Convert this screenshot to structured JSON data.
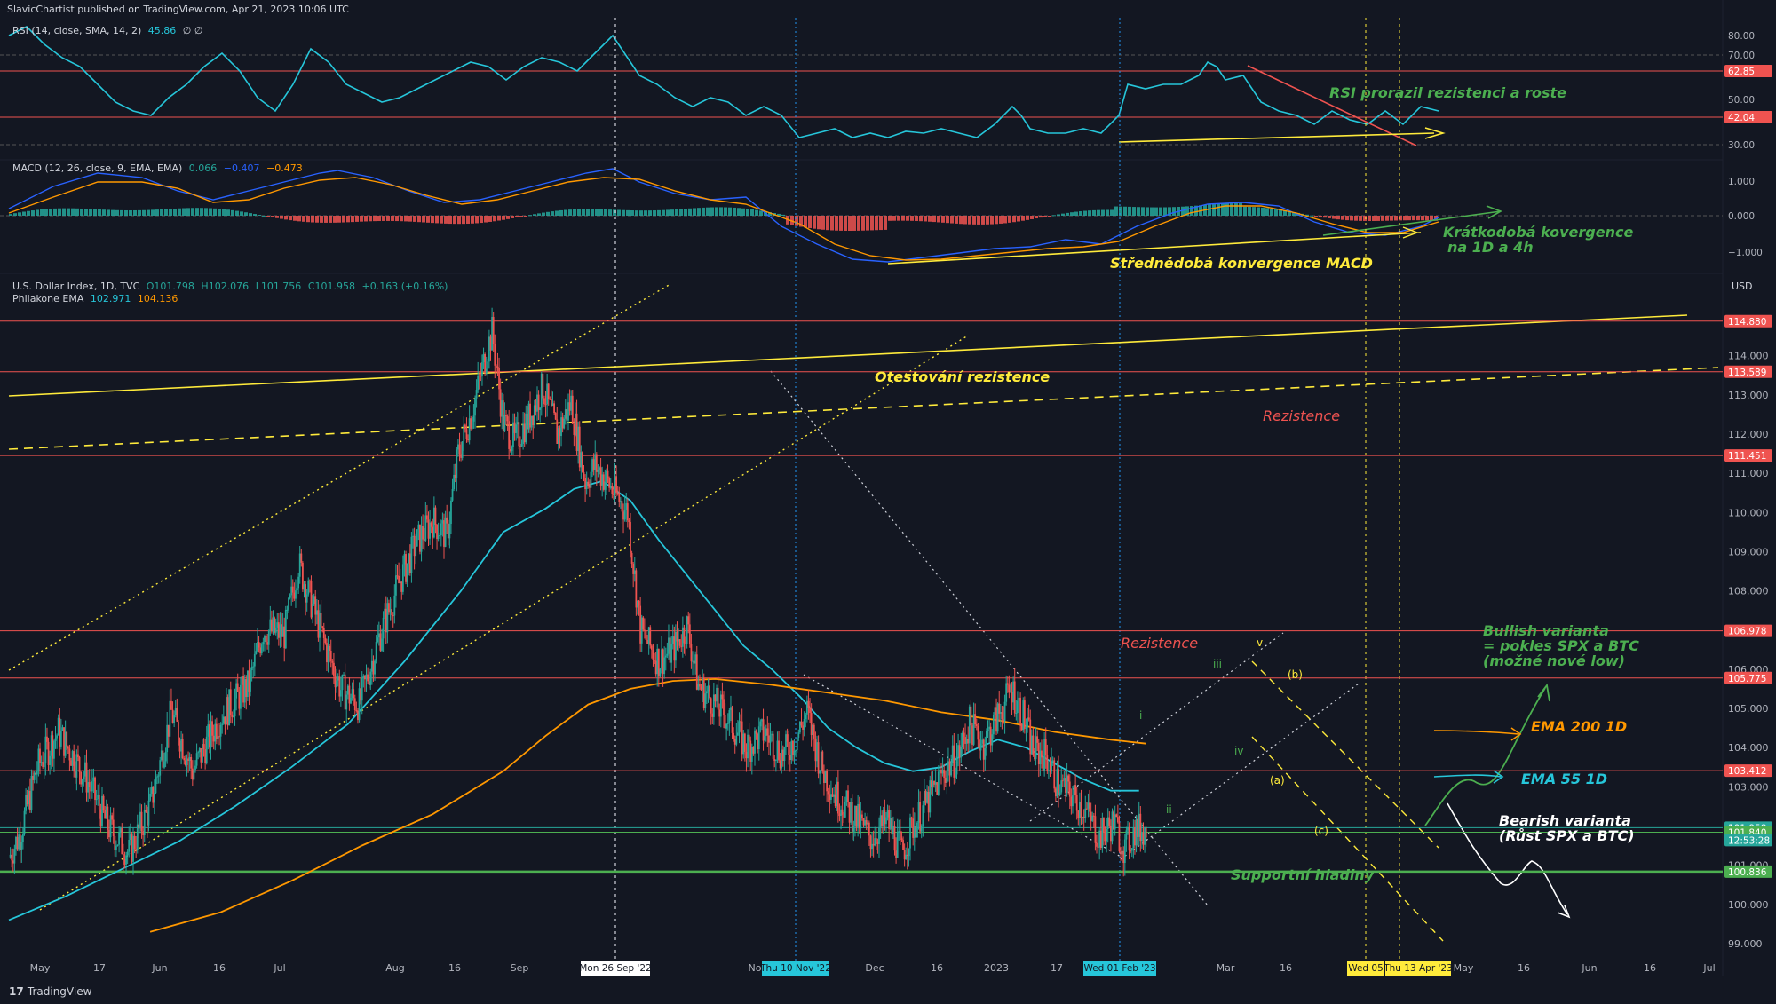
{
  "header": {
    "published": "SlavicChartist published on TradingView.com, Apr 21, 2023 10:06 UTC",
    "rsi_name": "RSI (14, close, SMA, 14, 2)",
    "rsi_value": "45.86",
    "rsi_extra": "∅ ∅",
    "macd_name": "MACD (12, 26, close, 9, EMA, EMA)",
    "macd_v1": "0.066",
    "macd_v2": "−0.407",
    "macd_v3": "−0.473",
    "main_name": "U.S. Dollar Index, 1D, TVC",
    "ohlc_o": "O101.798",
    "ohlc_h": "H102.076",
    "ohlc_l": "L101.756",
    "ohlc_c": "C101.958",
    "ohlc_chg": "+0.163 (+0.16%)",
    "ema_name": "Philakone EMA",
    "ema_v1": "102.971",
    "ema_v2": "104.136",
    "currency": "USD"
  },
  "footer": {
    "brand": "TradingView"
  },
  "colors": {
    "bg": "#131722",
    "up": "#26a69a",
    "down": "#ef5350",
    "ema55": "#26c6da",
    "ema200": "#ff9800",
    "rsi": "#26c6da",
    "red_line": "#ef5350",
    "green_line": "#4caf50",
    "yellow": "#ffeb3b"
  },
  "rsi_axis": [
    "80.00",
    "70.00",
    "62.85",
    "50.00",
    "42.04",
    "30.00"
  ],
  "macd_axis": [
    "1.000",
    "0.000",
    "−1.000"
  ],
  "annotations": {
    "rsi": "RSI prorazil rezistenci a roste",
    "macd_short": "Krátkodobá kovergence",
    "macd_short2": "na 1D a 4h",
    "macd_mid": "Střednědobá konvergence MACD",
    "retest": "Otestování rezistence",
    "res1": "Rezistence",
    "res2": "Rezistence",
    "bull1": "Bullish varianta",
    "bull2": "= pokles SPX a BTC",
    "bull3": "(možné nové low)",
    "ema200": "EMA 200 1D",
    "ema55": "EMA 55 1D",
    "bear1": "Bearish varianta",
    "bear2": "(Růst SPX a BTC)",
    "support": "Supportní hladiny",
    "waves": [
      "iii",
      "v",
      "(b)",
      "i",
      "iv",
      "ii",
      "(a)",
      "(c)"
    ]
  },
  "chart_data": {
    "type": "candlestick",
    "symbol": "U.S. Dollar Index",
    "ylim": [
      98.5,
      115.6
    ],
    "y_ticks": [
      114,
      113,
      112,
      111,
      110,
      109,
      108,
      107,
      106,
      105,
      104,
      103,
      102,
      101,
      100,
      99
    ],
    "price_labels": [
      {
        "value": 114.88,
        "text": "114.880",
        "color": "#ef5350"
      },
      {
        "value": 113.589,
        "text": "113.589",
        "color": "#ef5350"
      },
      {
        "value": 111.451,
        "text": "111.451",
        "color": "#ef5350"
      },
      {
        "value": 106.978,
        "text": "106.978",
        "color": "#ef5350"
      },
      {
        "value": 105.775,
        "text": "105.775",
        "color": "#ef5350"
      },
      {
        "value": 103.412,
        "text": "103.412",
        "color": "#ef5350"
      },
      {
        "value": 101.958,
        "text": "101.958",
        "color": "#26a69a"
      },
      {
        "value": 101.84,
        "text": "101.840",
        "color": "#4caf50"
      },
      {
        "value": 100.836,
        "text": "100.836",
        "color": "#4caf50"
      }
    ],
    "countdown": "12:53:28",
    "x_ticks": [
      "May",
      "17",
      "Jun",
      "16",
      "Jul",
      "Aug",
      "16",
      "Sep",
      "No",
      "Dec",
      "16",
      "2023",
      "17",
      "Mar",
      "16",
      "May",
      "16",
      "Jun",
      "16",
      "Jul"
    ],
    "x_highlights": [
      "Mon 26 Sep '22",
      "Thu 10 Nov '22",
      "Wed 01 Feb '23",
      "Wed 05",
      "Thu 13 Apr '23"
    ],
    "price_path": [
      [
        0,
        101.2
      ],
      [
        8,
        101.8
      ],
      [
        20,
        103.5
      ],
      [
        35,
        104.4
      ],
      [
        55,
        103.2
      ],
      [
        70,
        102.0
      ],
      [
        85,
        101.3
      ],
      [
        100,
        102.5
      ],
      [
        115,
        104.9
      ],
      [
        130,
        103.4
      ],
      [
        150,
        104.8
      ],
      [
        170,
        105.6
      ],
      [
        180,
        107.0
      ],
      [
        195,
        106.9
      ],
      [
        205,
        108.7
      ],
      [
        215,
        107.6
      ],
      [
        225,
        106.5
      ],
      [
        235,
        105.5
      ],
      [
        248,
        105.1
      ],
      [
        262,
        106.8
      ],
      [
        275,
        108.1
      ],
      [
        288,
        109.2
      ],
      [
        300,
        109.8
      ],
      [
        310,
        109.4
      ],
      [
        318,
        111.5
      ],
      [
        328,
        112.6
      ],
      [
        336,
        113.8
      ],
      [
        342,
        114.6
      ],
      [
        350,
        112.3
      ],
      [
        358,
        111.8
      ],
      [
        368,
        112.4
      ],
      [
        378,
        113.2
      ],
      [
        388,
        112.0
      ],
      [
        398,
        112.8
      ],
      [
        408,
        110.8
      ],
      [
        415,
        111.2
      ],
      [
        425,
        110.7
      ],
      [
        438,
        110.0
      ],
      [
        447,
        107.0
      ],
      [
        460,
        106.2
      ],
      [
        470,
        106.5
      ],
      [
        480,
        107.1
      ],
      [
        488,
        105.6
      ],
      [
        498,
        105.2
      ],
      [
        510,
        104.7
      ],
      [
        522,
        104.0
      ],
      [
        535,
        104.4
      ],
      [
        548,
        103.8
      ],
      [
        558,
        104.3
      ],
      [
        565,
        104.9
      ],
      [
        575,
        103.5
      ],
      [
        585,
        102.8
      ],
      [
        597,
        102.3
      ],
      [
        610,
        101.7
      ],
      [
        622,
        102.1
      ],
      [
        632,
        101.3
      ],
      [
        640,
        102.0
      ],
      [
        650,
        102.6
      ],
      [
        660,
        103.3
      ],
      [
        672,
        103.8
      ],
      [
        680,
        104.6
      ],
      [
        690,
        104.1
      ],
      [
        700,
        104.8
      ],
      [
        710,
        105.5
      ],
      [
        718,
        104.8
      ],
      [
        725,
        103.9
      ],
      [
        734,
        103.8
      ],
      [
        742,
        103.1
      ],
      [
        752,
        102.8
      ],
      [
        762,
        102.4
      ],
      [
        772,
        101.7
      ],
      [
        782,
        102.1
      ],
      [
        790,
        101.4
      ],
      [
        797,
        101.9
      ],
      [
        805,
        101.9
      ]
    ],
    "ema55_path": [
      [
        0,
        99.6
      ],
      [
        40,
        100.2
      ],
      [
        80,
        100.9
      ],
      [
        120,
        101.6
      ],
      [
        160,
        102.5
      ],
      [
        200,
        103.5
      ],
      [
        240,
        104.6
      ],
      [
        280,
        106.2
      ],
      [
        320,
        108.0
      ],
      [
        350,
        109.5
      ],
      [
        380,
        110.1
      ],
      [
        400,
        110.6
      ],
      [
        420,
        110.8
      ],
      [
        440,
        110.3
      ],
      [
        460,
        109.3
      ],
      [
        480,
        108.4
      ],
      [
        500,
        107.5
      ],
      [
        520,
        106.6
      ],
      [
        540,
        106.0
      ],
      [
        560,
        105.3
      ],
      [
        580,
        104.5
      ],
      [
        600,
        104.0
      ],
      [
        620,
        103.6
      ],
      [
        640,
        103.4
      ],
      [
        660,
        103.5
      ],
      [
        680,
        103.9
      ],
      [
        700,
        104.2
      ],
      [
        720,
        104.0
      ],
      [
        740,
        103.6
      ],
      [
        760,
        103.2
      ],
      [
        780,
        102.9
      ],
      [
        800,
        102.9
      ]
    ],
    "ema200_path": [
      [
        100,
        99.3
      ],
      [
        150,
        99.8
      ],
      [
        200,
        100.6
      ],
      [
        250,
        101.5
      ],
      [
        300,
        102.3
      ],
      [
        350,
        103.4
      ],
      [
        380,
        104.3
      ],
      [
        410,
        105.1
      ],
      [
        440,
        105.5
      ],
      [
        470,
        105.7
      ],
      [
        500,
        105.75
      ],
      [
        540,
        105.6
      ],
      [
        580,
        105.4
      ],
      [
        620,
        105.2
      ],
      [
        660,
        104.9
      ],
      [
        700,
        104.7
      ],
      [
        740,
        104.4
      ],
      [
        780,
        104.2
      ],
      [
        805,
        104.1
      ]
    ]
  }
}
